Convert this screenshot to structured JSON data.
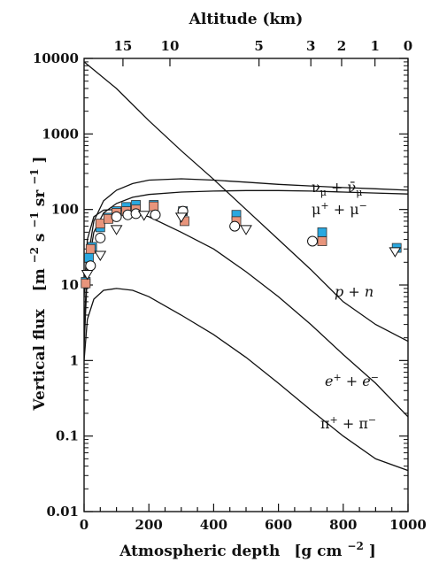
{
  "chart_data": {
    "type": "scatter",
    "title": "",
    "xlabel": "Atmospheric depth",
    "xlabel_unit": "[g cm",
    "xlabel_unit_exp": "−2",
    "xlabel_unit_close": "]",
    "ylabel": "Vertical flux",
    "ylabel_unit": "[m",
    "ylabel_unit_rest": " s",
    "ylabel_unit_exp1": "−2",
    "ylabel_unit_exp2": "−1",
    "ylabel_unit_sr": " sr",
    "ylabel_unit_exp3": "−1",
    "ylabel_unit_close": "]",
    "top_axis_label": "Altitude (km)",
    "xlim": [
      0,
      1000
    ],
    "ylim": [
      0.01,
      10000
    ],
    "yscale": "log",
    "x_ticks": [
      "0",
      "200",
      "400",
      "600",
      "800",
      "1000"
    ],
    "y_ticks": [
      "0.01",
      "0.1",
      "1",
      "10",
      "100",
      "1000",
      "10000"
    ],
    "top_ticks": [
      {
        "label": "15",
        "depth": 120
      },
      {
        "label": "10",
        "depth": 265
      },
      {
        "label": "5",
        "depth": 540
      },
      {
        "label": "3",
        "depth": 700
      },
      {
        "label": "2",
        "depth": 795
      },
      {
        "label": "1",
        "depth": 898
      },
      {
        "label": "0",
        "depth": 1030
      }
    ],
    "curves": [
      {
        "label": "p + n",
        "points": [
          [
            0,
            9000
          ],
          [
            100,
            4000
          ],
          [
            200,
            1500
          ],
          [
            300,
            600
          ],
          [
            400,
            250
          ],
          [
            500,
            100
          ],
          [
            600,
            40
          ],
          [
            700,
            16
          ],
          [
            800,
            6
          ],
          [
            900,
            3
          ],
          [
            1000,
            1.8
          ]
        ]
      },
      {
        "label": "ν_μ + ν̄_μ",
        "points": [
          [
            0,
            2.5
          ],
          [
            10,
            20
          ],
          [
            30,
            70
          ],
          [
            60,
            130
          ],
          [
            100,
            180
          ],
          [
            150,
            220
          ],
          [
            200,
            245
          ],
          [
            300,
            255
          ],
          [
            400,
            245
          ],
          [
            500,
            230
          ],
          [
            600,
            215
          ],
          [
            700,
            205
          ],
          [
            800,
            195
          ],
          [
            900,
            188
          ],
          [
            1000,
            180
          ]
        ]
      },
      {
        "label": "μ⁺ + μ⁻",
        "points": [
          [
            0,
            1.5
          ],
          [
            10,
            15
          ],
          [
            30,
            50
          ],
          [
            60,
            90
          ],
          [
            100,
            120
          ],
          [
            150,
            145
          ],
          [
            200,
            158
          ],
          [
            300,
            170
          ],
          [
            400,
            175
          ],
          [
            500,
            178
          ],
          [
            600,
            178
          ],
          [
            700,
            175
          ],
          [
            800,
            170
          ],
          [
            900,
            165
          ],
          [
            1000,
            160
          ]
        ]
      },
      {
        "label": "e⁺ + e⁻",
        "points": [
          [
            0,
            7
          ],
          [
            10,
            40
          ],
          [
            30,
            80
          ],
          [
            60,
            98
          ],
          [
            100,
            100
          ],
          [
            150,
            92
          ],
          [
            200,
            80
          ],
          [
            300,
            50
          ],
          [
            400,
            30
          ],
          [
            500,
            15
          ],
          [
            600,
            7
          ],
          [
            700,
            3
          ],
          [
            800,
            1.2
          ],
          [
            900,
            0.5
          ],
          [
            1000,
            0.18
          ]
        ]
      },
      {
        "label": "π⁺ + π⁻",
        "points": [
          [
            0,
            1
          ],
          [
            10,
            3.5
          ],
          [
            30,
            6.5
          ],
          [
            60,
            8.5
          ],
          [
            100,
            9
          ],
          [
            150,
            8.5
          ],
          [
            200,
            7
          ],
          [
            300,
            4
          ],
          [
            400,
            2.2
          ],
          [
            500,
            1.1
          ],
          [
            600,
            0.5
          ],
          [
            700,
            0.22
          ],
          [
            800,
            0.1
          ],
          [
            900,
            0.05
          ],
          [
            1000,
            0.035
          ]
        ]
      }
    ],
    "series": [
      {
        "name": "",
        "marker": "square",
        "color": "#29a8e0",
        "points": [
          [
            5,
            11
          ],
          [
            15,
            23
          ],
          [
            25,
            32
          ],
          [
            50,
            58
          ],
          [
            75,
            78
          ],
          [
            100,
            95
          ],
          [
            130,
            108
          ],
          [
            160,
            115
          ],
          [
            215,
            115
          ],
          [
            305,
            95
          ],
          [
            470,
            85
          ],
          [
            735,
            50
          ],
          [
            965,
            31
          ]
        ]
      },
      {
        "name": "",
        "marker": "square",
        "color": "#e8957c",
        "points": [
          [
            5,
            10.5
          ],
          [
            20,
            30
          ],
          [
            50,
            65
          ],
          [
            75,
            75
          ],
          [
            100,
            90
          ],
          [
            130,
            95
          ],
          [
            160,
            100
          ],
          [
            215,
            110
          ],
          [
            310,
            70
          ],
          [
            470,
            70
          ],
          [
            735,
            38
          ]
        ]
      },
      {
        "name": "",
        "marker": "circle",
        "color": "#ffffff",
        "points": [
          [
            20,
            18
          ],
          [
            50,
            42
          ],
          [
            100,
            80
          ],
          [
            135,
            85
          ],
          [
            160,
            88
          ],
          [
            220,
            85
          ],
          [
            305,
            95
          ],
          [
            465,
            60
          ],
          [
            705,
            38
          ]
        ]
      },
      {
        "name": "",
        "marker": "triangle-down",
        "color": "#ffffff",
        "points": [
          [
            10,
            14
          ],
          [
            50,
            25
          ],
          [
            100,
            55
          ],
          [
            185,
            85
          ],
          [
            300,
            80
          ],
          [
            500,
            55
          ],
          [
            960,
            28
          ]
        ]
      }
    ]
  }
}
